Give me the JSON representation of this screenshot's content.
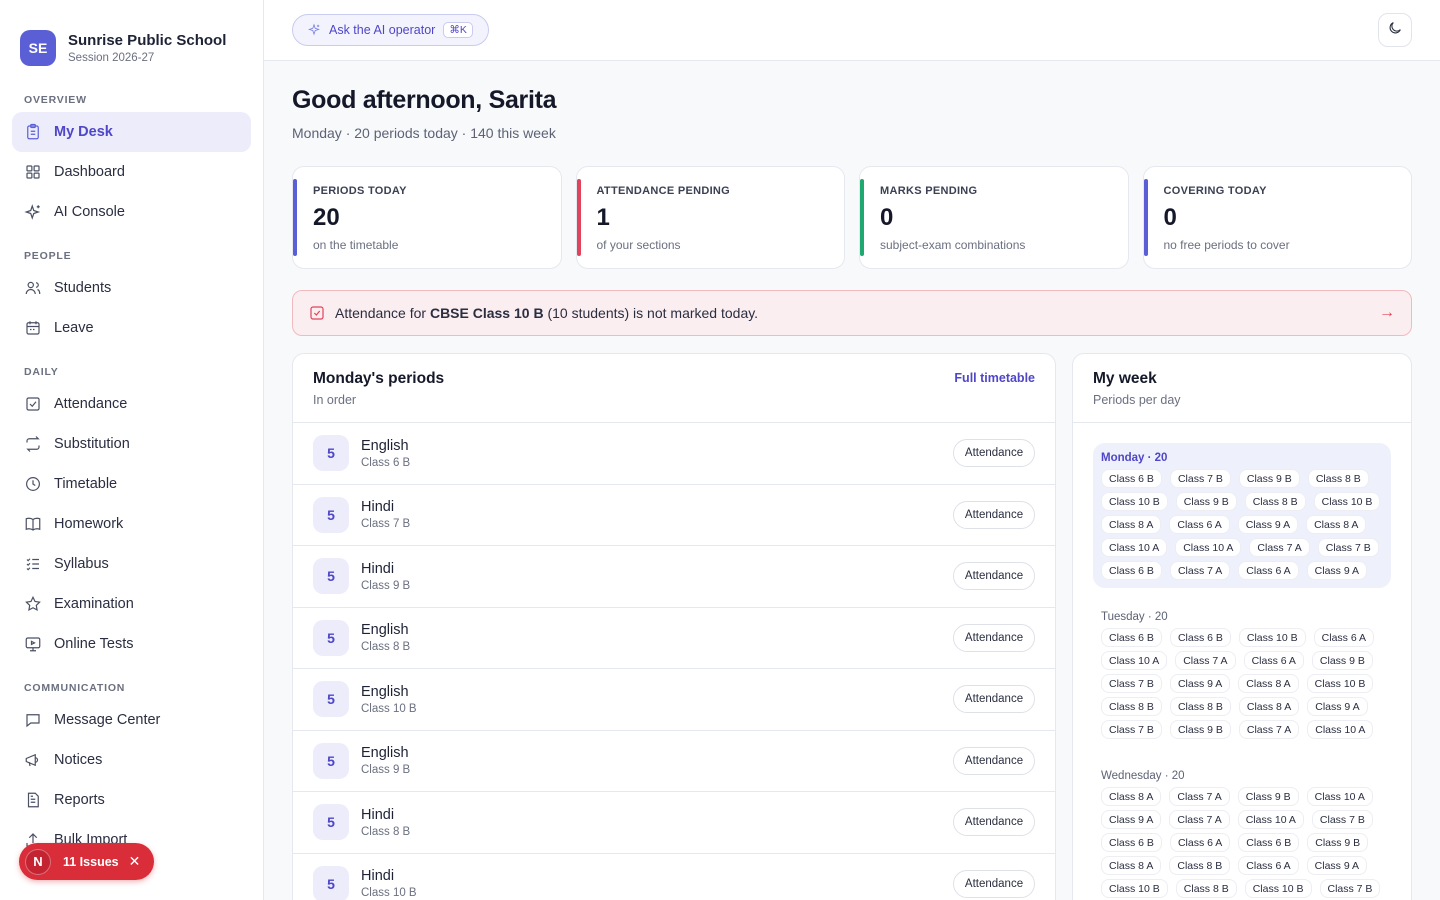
{
  "brand": {
    "initials": "SE",
    "name": "Sunrise Public School",
    "session": "Session 2026-27"
  },
  "sidebar": {
    "sections": [
      {
        "title": "OVERVIEW",
        "items": [
          {
            "label": "My Desk",
            "icon": "clipboard-icon",
            "active": true
          },
          {
            "label": "Dashboard",
            "icon": "grid-icon"
          },
          {
            "label": "AI Console",
            "icon": "sparkle-icon"
          }
        ]
      },
      {
        "title": "PEOPLE",
        "items": [
          {
            "label": "Students",
            "icon": "users-icon"
          },
          {
            "label": "Leave",
            "icon": "calendar-icon"
          }
        ]
      },
      {
        "title": "DAILY",
        "items": [
          {
            "label": "Attendance",
            "icon": "check-square-icon"
          },
          {
            "label": "Substitution",
            "icon": "repeat-icon"
          },
          {
            "label": "Timetable",
            "icon": "clock-icon"
          },
          {
            "label": "Homework",
            "icon": "book-icon"
          },
          {
            "label": "Syllabus",
            "icon": "list-check-icon"
          },
          {
            "label": "Examination",
            "icon": "star-icon"
          },
          {
            "label": "Online Tests",
            "icon": "monitor-icon"
          }
        ]
      },
      {
        "title": "COMMUNICATION",
        "items": [
          {
            "label": "Message Center",
            "icon": "message-icon"
          },
          {
            "label": "Notices",
            "icon": "megaphone-icon"
          },
          {
            "label": "Reports",
            "icon": "file-icon"
          },
          {
            "label": "Bulk Import",
            "icon": "upload-icon"
          }
        ]
      }
    ]
  },
  "issues": {
    "badge": "N",
    "label": "11 Issues"
  },
  "topbar": {
    "ask_label": "Ask the AI operator",
    "shortcut": "⌘K"
  },
  "header": {
    "greeting": "Good afternoon, Sarita",
    "subtitle": "Monday · 20 periods today · 140 this week"
  },
  "stats": [
    {
      "label": "PERIODS TODAY",
      "value": "20",
      "sub": "on the timetable",
      "accent": "#5b5fd6"
    },
    {
      "label": "ATTENDANCE PENDING",
      "value": "1",
      "sub": "of your sections",
      "accent": "#e0435a"
    },
    {
      "label": "MARKS PENDING",
      "value": "0",
      "sub": "subject-exam combinations",
      "accent": "#1fa870"
    },
    {
      "label": "COVERING TODAY",
      "value": "0",
      "sub": "no free periods to cover",
      "accent": "#5b5fd6"
    }
  ],
  "alert": {
    "prefix": "Attendance for ",
    "section": "CBSE Class 10 B",
    "suffix": " (10 students) is not marked today."
  },
  "periods": {
    "title": "Monday's periods",
    "subtitle": "In order",
    "link": "Full timetable",
    "button_label": "Attendance",
    "rows": [
      {
        "num": "5",
        "subject": "English",
        "cls": "Class 6 B"
      },
      {
        "num": "5",
        "subject": "Hindi",
        "cls": "Class 7 B"
      },
      {
        "num": "5",
        "subject": "Hindi",
        "cls": "Class 9 B"
      },
      {
        "num": "5",
        "subject": "English",
        "cls": "Class 8 B"
      },
      {
        "num": "5",
        "subject": "English",
        "cls": "Class 10 B"
      },
      {
        "num": "5",
        "subject": "English",
        "cls": "Class 9 B"
      },
      {
        "num": "5",
        "subject": "Hindi",
        "cls": "Class 8 B"
      },
      {
        "num": "5",
        "subject": "Hindi",
        "cls": "Class 10 B"
      }
    ]
  },
  "week": {
    "title": "My week",
    "subtitle": "Periods per day",
    "days": [
      {
        "label": "Monday · 20",
        "active": true,
        "classes": [
          "Class 6 B",
          "Class 7 B",
          "Class 9 B",
          "Class 8 B",
          "Class 10 B",
          "Class 9 B",
          "Class 8 B",
          "Class 10 B",
          "Class 8 A",
          "Class 6 A",
          "Class 9 A",
          "Class 8 A",
          "Class 10 A",
          "Class 10 A",
          "Class 7 A",
          "Class 7 B",
          "Class 6 B",
          "Class 7 A",
          "Class 6 A",
          "Class 9 A"
        ]
      },
      {
        "label": "Tuesday · 20",
        "active": false,
        "classes": [
          "Class 6 B",
          "Class 6 B",
          "Class 10 B",
          "Class 6 A",
          "Class 10 A",
          "Class 7 A",
          "Class 6 A",
          "Class 9 B",
          "Class 7 B",
          "Class 9 A",
          "Class 8 A",
          "Class 10 B",
          "Class 8 B",
          "Class 8 B",
          "Class 8 A",
          "Class 9 A",
          "Class 7 B",
          "Class 9 B",
          "Class 7 A",
          "Class 10 A"
        ]
      },
      {
        "label": "Wednesday · 20",
        "active": false,
        "classes": [
          "Class 8 A",
          "Class 7 A",
          "Class 9 B",
          "Class 10 A",
          "Class 9 A",
          "Class 7 A",
          "Class 10 A",
          "Class 7 B",
          "Class 6 B",
          "Class 6 A",
          "Class 6 B",
          "Class 9 B",
          "Class 8 A",
          "Class 8 B",
          "Class 6 A",
          "Class 9 A",
          "Class 10 B",
          "Class 8 B",
          "Class 10 B",
          "Class 7 B"
        ]
      }
    ]
  }
}
